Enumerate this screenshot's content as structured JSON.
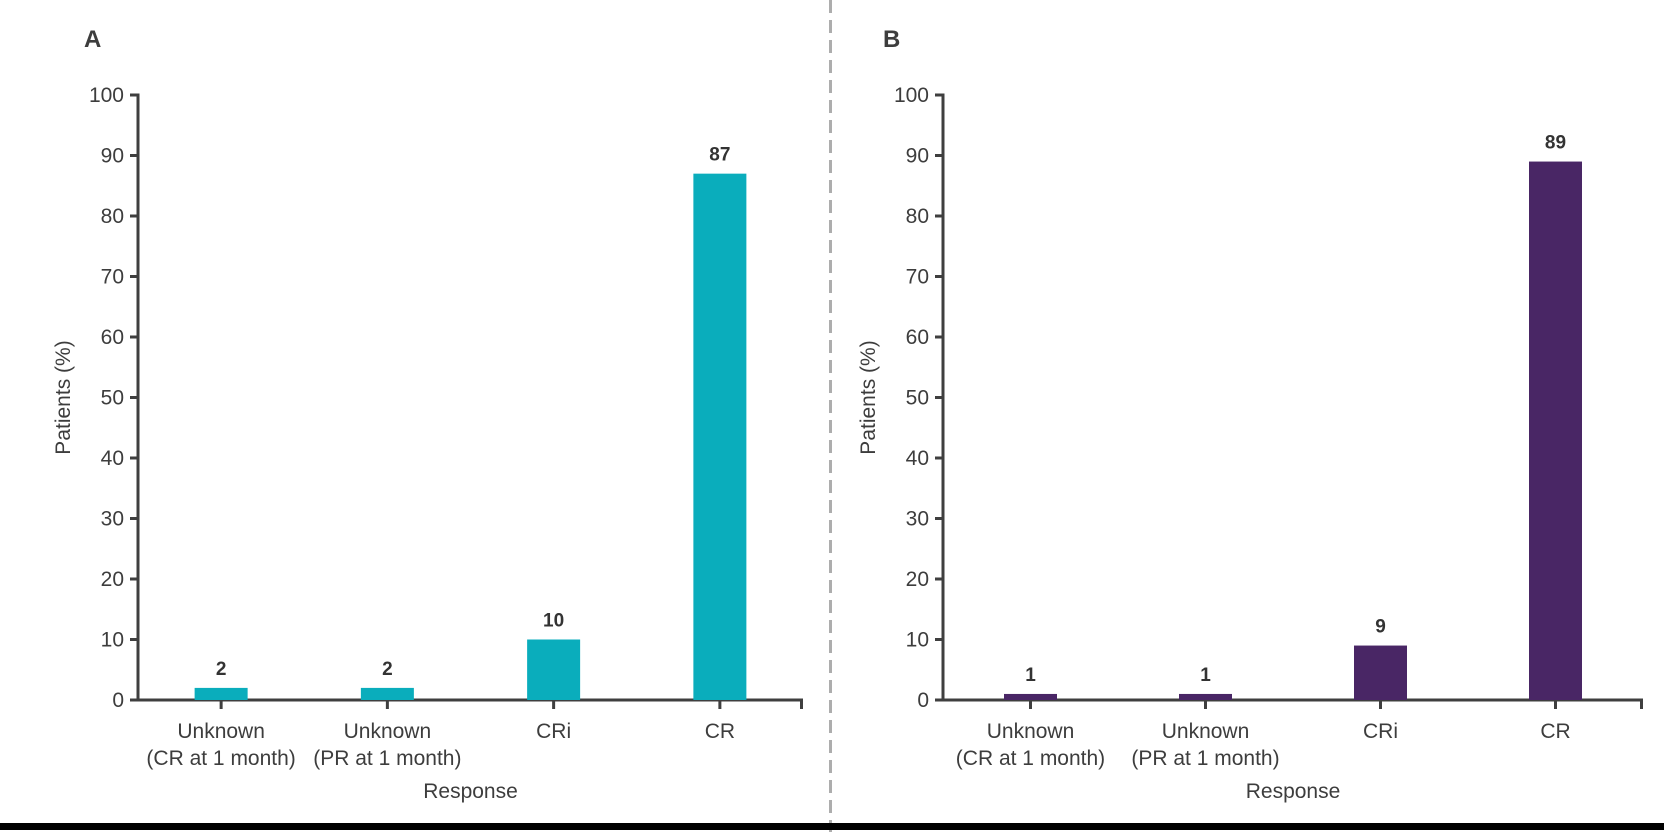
{
  "figure": {
    "background": "#ffffff",
    "divider_color": "#adadad",
    "bottom_rule_color": "#000000",
    "axis_color": "#3f3f3f",
    "text_color": "#3d3d3d",
    "value_label_color": "#333333"
  },
  "chart_data": [
    {
      "type": "bar",
      "panel_label": "A",
      "bar_color": "#0aadbc",
      "categories": [
        [
          "Unknown",
          "(CR at 1 month)"
        ],
        [
          "Unknown",
          "(PR at 1 month)"
        ],
        [
          "CRi"
        ],
        [
          "CR"
        ]
      ],
      "values": [
        2,
        2,
        10,
        87
      ],
      "value_labels": [
        "2",
        "2",
        "10",
        "87"
      ],
      "xlabel": "Response",
      "ylabel": "Patients (%)",
      "ylim": [
        0,
        100
      ],
      "ytick_step": 10,
      "ytick_labels": [
        "0",
        "10",
        "20",
        "30",
        "40",
        "50",
        "60",
        "70",
        "80",
        "90",
        "100"
      ],
      "grid": false,
      "legend": "none"
    },
    {
      "type": "bar",
      "panel_label": "B",
      "bar_color": "#492665",
      "categories": [
        [
          "Unknown",
          "(CR at 1 month)"
        ],
        [
          "Unknown",
          "(PR at 1 month)"
        ],
        [
          "CRi"
        ],
        [
          "CR"
        ]
      ],
      "values": [
        1,
        1,
        9,
        89
      ],
      "value_labels": [
        "1",
        "1",
        "9",
        "89"
      ],
      "xlabel": "Response",
      "ylabel": "Patients (%)",
      "ylim": [
        0,
        100
      ],
      "ytick_step": 10,
      "ytick_labels": [
        "0",
        "10",
        "20",
        "30",
        "40",
        "50",
        "60",
        "70",
        "80",
        "90",
        "100"
      ],
      "grid": false,
      "legend": "none"
    }
  ]
}
